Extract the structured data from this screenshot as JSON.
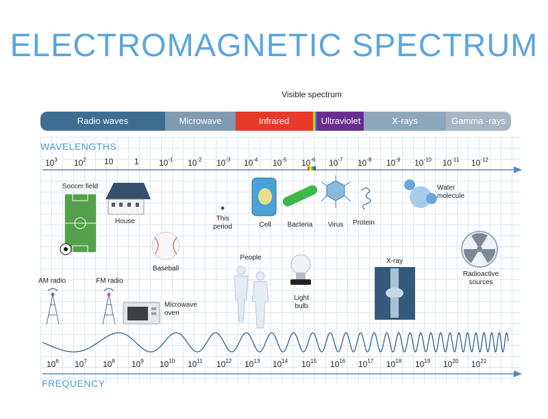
{
  "title": "ELECTROMAGNETIC SPECTRUM",
  "visible_label": "Visible spectrum",
  "bands": {
    "radio": "Radio waves",
    "microwave": "Microwave",
    "infrared": "Infrared",
    "ultraviolet": "Ultraviolet",
    "xrays": "X-rays",
    "gamma": "Gamma -rays"
  },
  "wavelengths_title": "WAVELENGTHS",
  "frequency_title": "FREQUENCY",
  "wavelength_ticks": [
    {
      "base": "10",
      "exp": "3"
    },
    {
      "base": "10",
      "exp": "2"
    },
    {
      "base": "10",
      "exp": ""
    },
    {
      "base": "1",
      "exp": ""
    },
    {
      "base": "10",
      "exp": "-1"
    },
    {
      "base": "10",
      "exp": "-2"
    },
    {
      "base": "10",
      "exp": "-3"
    },
    {
      "base": "10",
      "exp": "-4"
    },
    {
      "base": "10",
      "exp": "-5"
    },
    {
      "base": "10",
      "exp": "-6"
    },
    {
      "base": "10",
      "exp": "-7"
    },
    {
      "base": "10",
      "exp": "-8"
    },
    {
      "base": "10",
      "exp": "-9"
    },
    {
      "base": "10",
      "exp": "-10"
    },
    {
      "base": "10",
      "exp": "-11"
    },
    {
      "base": "10",
      "exp": "-12"
    }
  ],
  "frequency_ticks": [
    {
      "base": "10",
      "exp": "6"
    },
    {
      "base": "10",
      "exp": "7"
    },
    {
      "base": "10",
      "exp": "8"
    },
    {
      "base": "10",
      "exp": "9"
    },
    {
      "base": "10",
      "exp": "10"
    },
    {
      "base": "10",
      "exp": "11"
    },
    {
      "base": "10",
      "exp": "12"
    },
    {
      "base": "10",
      "exp": "13"
    },
    {
      "base": "10",
      "exp": "14"
    },
    {
      "base": "10",
      "exp": "15"
    },
    {
      "base": "10",
      "exp": "16"
    },
    {
      "base": "10",
      "exp": "17"
    },
    {
      "base": "10",
      "exp": "18"
    },
    {
      "base": "10",
      "exp": "19"
    },
    {
      "base": "10",
      "exp": "20"
    },
    {
      "base": "10",
      "exp": "21"
    }
  ],
  "objects": {
    "soccer_field": "Soccer field",
    "house": "House",
    "period": "This period",
    "cell": "Cell",
    "bacteria": "Bacteria",
    "virus": "Virus",
    "protein": "Protein",
    "water_molecule": "Water molecule",
    "baseball": "Baseball",
    "people": "People",
    "xray": "X-ray",
    "radioactive": "Radioactive sources",
    "am_radio": "AM radio",
    "fm_radio": "FM radio",
    "microwave_oven": "Microwave oven",
    "light_bulb": "Light bulb"
  },
  "colors": {
    "title": "#5aa6dd",
    "radio": "#3d6e92",
    "microwave": "#7e9bb2",
    "infrared": "#e63a2a",
    "ultraviolet": "#6a2e8e",
    "xrays": "#8da6bc",
    "gamma": "#a6b6c4",
    "axis": "#5b87b3",
    "wave": "#2d5f8a"
  }
}
